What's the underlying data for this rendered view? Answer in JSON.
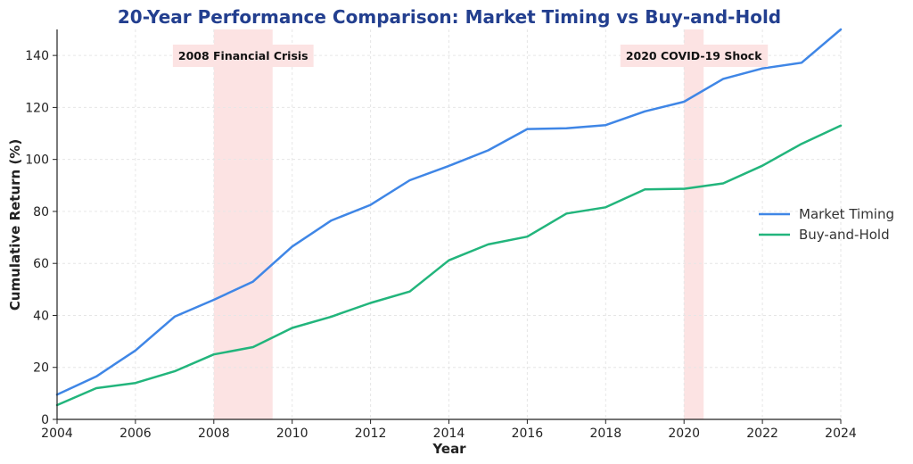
{
  "chart_data": {
    "type": "line",
    "title": "20-Year Performance Comparison: Market Timing vs Buy-and-Hold",
    "xlabel": "Year",
    "ylabel": "Cumulative Return (%)",
    "xlim": [
      2004,
      2024
    ],
    "ylim": [
      0,
      150
    ],
    "x_ticks": [
      2004,
      2006,
      2008,
      2010,
      2012,
      2014,
      2016,
      2018,
      2020,
      2022,
      2024
    ],
    "y_ticks": [
      0,
      20,
      40,
      60,
      80,
      100,
      120,
      140
    ],
    "grid": true,
    "legend_position": "center-right",
    "x": [
      2004,
      2005,
      2006,
      2007,
      2008,
      2009,
      2010,
      2011,
      2012,
      2013,
      2014,
      2015,
      2016,
      2017,
      2018,
      2019,
      2020,
      2021,
      2022,
      2023,
      2024
    ],
    "series": [
      {
        "name": "Market Timing",
        "color": "#3f86e6",
        "values": [
          9.5,
          16.5,
          26.5,
          39.5,
          46,
          53,
          66.5,
          76.5,
          82.5,
          92,
          97.5,
          103.5,
          111.7,
          112,
          113.2,
          118.5,
          122.2,
          131,
          135,
          137.2,
          150
        ]
      },
      {
        "name": "Buy-and-Hold",
        "color": "#22b57c",
        "values": [
          5.5,
          12,
          14,
          18.5,
          25,
          27.8,
          35.2,
          39.5,
          44.8,
          49.2,
          61.2,
          67.3,
          70.3,
          79.2,
          81.6,
          88.5,
          88.7,
          90.8,
          97.6,
          106,
          113
        ]
      }
    ],
    "shaded_regions": [
      {
        "label": "2008 Financial Crisis",
        "x_start": 2008,
        "x_end": 2009.5,
        "color": "#fce3e3"
      },
      {
        "label": "2020 COVID-19 Shock",
        "x_start": 2020,
        "x_end": 2020.5,
        "color": "#fce3e3"
      }
    ]
  }
}
